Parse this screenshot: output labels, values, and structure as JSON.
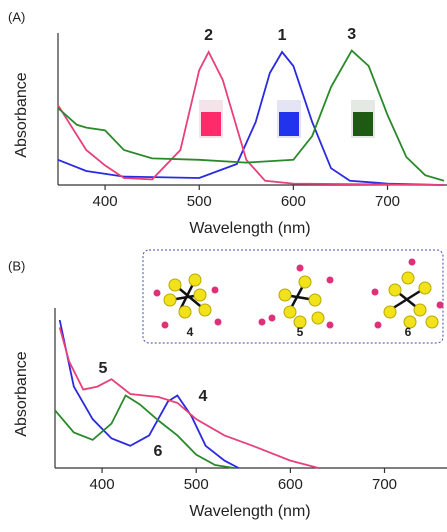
{
  "chart_data": [
    {
      "type": "line",
      "panel": "(A)",
      "ylabel": "Absorbance",
      "xlabel": "Wavelength (nm)",
      "xlim": [
        350,
        760
      ],
      "xticks": [
        400,
        500,
        600,
        700
      ],
      "ylim": [
        0,
        1
      ],
      "series": [
        {
          "name": "1",
          "color": "#2a2ae0",
          "x": [
            350,
            380,
            420,
            500,
            540,
            560,
            575,
            588,
            600,
            620,
            640,
            660,
            700,
            760
          ],
          "values": [
            0.18,
            0.1,
            0.06,
            0.05,
            0.15,
            0.45,
            0.8,
            0.95,
            0.85,
            0.45,
            0.12,
            0.03,
            0.01,
            0.0
          ]
        },
        {
          "name": "2",
          "color": "#e8407a",
          "x": [
            350,
            380,
            400,
            420,
            450,
            480,
            500,
            510,
            525,
            550,
            570,
            600,
            760
          ],
          "values": [
            0.57,
            0.25,
            0.14,
            0.05,
            0.04,
            0.25,
            0.82,
            0.95,
            0.75,
            0.18,
            0.03,
            0.01,
            0.0
          ]
        },
        {
          "name": "3",
          "color": "#2a8a2a",
          "x": [
            350,
            370,
            380,
            400,
            420,
            450,
            500,
            550,
            600,
            620,
            640,
            662,
            680,
            700,
            720,
            740,
            760
          ],
          "values": [
            0.55,
            0.43,
            0.41,
            0.39,
            0.25,
            0.19,
            0.18,
            0.16,
            0.18,
            0.35,
            0.7,
            0.96,
            0.85,
            0.5,
            0.2,
            0.07,
            0.03
          ]
        }
      ]
    },
    {
      "type": "line",
      "panel": "(B)",
      "ylabel": "Absorbance",
      "xlabel": "Wavelength (nm)",
      "xlim": [
        350,
        760
      ],
      "xticks": [
        400,
        500,
        600,
        700
      ],
      "ylim": [
        0,
        1
      ],
      "series": [
        {
          "name": "4",
          "color": "#2a2ae0",
          "x": [
            355,
            370,
            390,
            410,
            430,
            450,
            470,
            480,
            495,
            510,
            530,
            545
          ],
          "values": [
            1.0,
            0.55,
            0.33,
            0.2,
            0.15,
            0.22,
            0.45,
            0.49,
            0.35,
            0.15,
            0.05,
            0.0
          ]
        },
        {
          "name": "5",
          "color": "#e8407a",
          "x": [
            355,
            365,
            380,
            395,
            410,
            430,
            460,
            480,
            500,
            530,
            560,
            600,
            630
          ],
          "values": [
            0.95,
            0.72,
            0.53,
            0.55,
            0.6,
            0.5,
            0.48,
            0.44,
            0.33,
            0.22,
            0.15,
            0.05,
            0.0
          ]
        },
        {
          "name": "6",
          "color": "#2a8a2a",
          "x": [
            350,
            370,
            390,
            410,
            425,
            440,
            460,
            480,
            500,
            520,
            540
          ],
          "values": [
            0.39,
            0.24,
            0.19,
            0.3,
            0.49,
            0.43,
            0.32,
            0.22,
            0.09,
            0.02,
            0.0
          ]
        }
      ]
    }
  ]
}
